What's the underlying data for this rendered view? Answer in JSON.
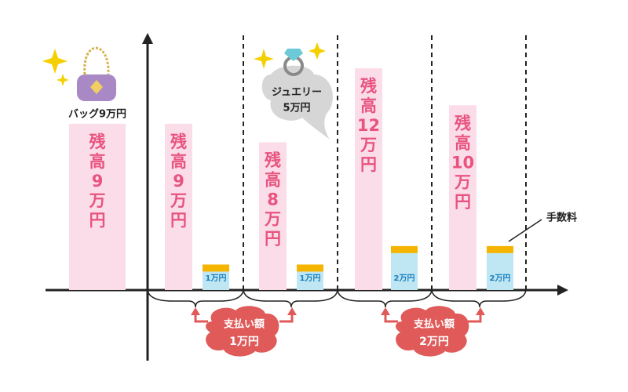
{
  "chart_data": {
    "type": "bar",
    "ylim": [
      0,
      14
    ],
    "balance_values": [
      9,
      9,
      8,
      12,
      10
    ],
    "balance_labels": [
      [
        "残",
        "高",
        "9",
        "万",
        "円"
      ],
      [
        "残",
        "高",
        "9",
        "万",
        "円"
      ],
      [
        "残",
        "高",
        "8",
        "万",
        "円"
      ],
      [
        "残",
        "高",
        "12",
        "万",
        "円"
      ],
      [
        "残",
        "高",
        "10",
        "万",
        "円"
      ]
    ],
    "payment_values": [
      1,
      1,
      2,
      2
    ],
    "payment_labels": [
      "1万円",
      "1万円",
      "2万円",
      "2万円"
    ],
    "fee_label": "手数料",
    "item_bag": "バッグ9万円",
    "item_jewelry": [
      "ジュエリー",
      "5万円"
    ],
    "payment_notes": [
      [
        "支払い額",
        "1万円"
      ],
      [
        "支払い額",
        "2万円"
      ]
    ]
  }
}
